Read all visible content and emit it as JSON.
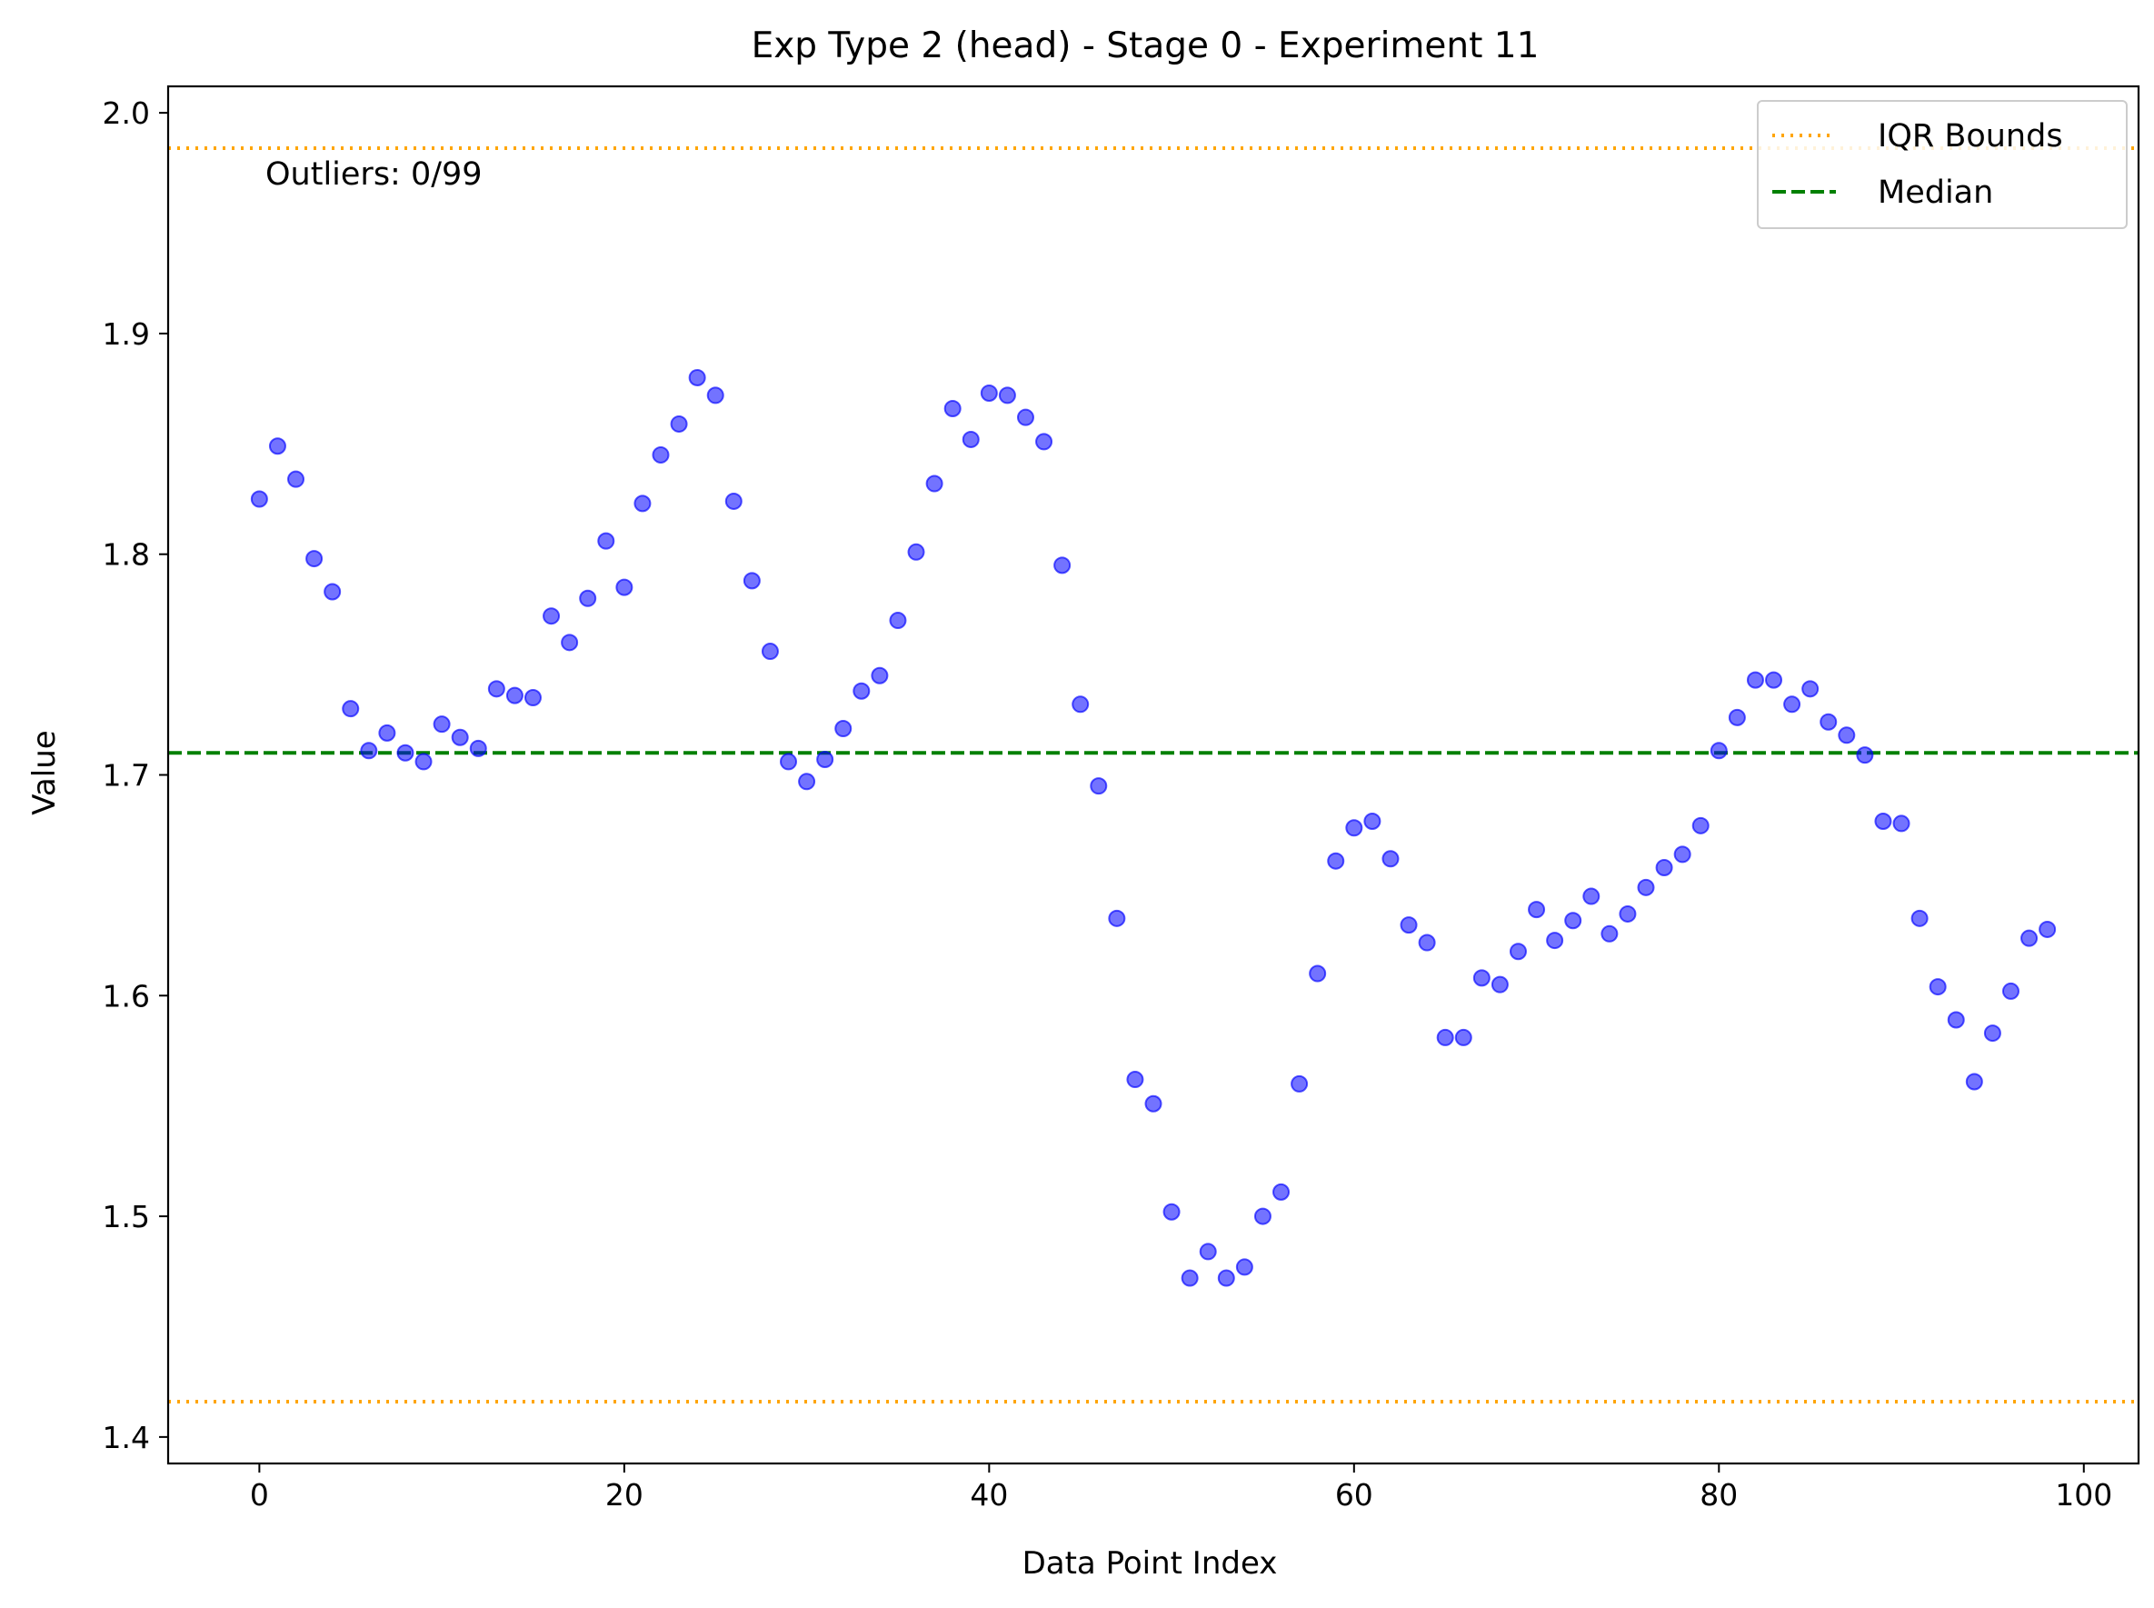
{
  "chart_data": {
    "type": "scatter",
    "title": "Exp Type 2 (head) - Stage 0 - Experiment 11",
    "xlabel": "Data Point Index",
    "ylabel": "Value",
    "xlim": [
      -5,
      103
    ],
    "ylim": [
      1.388,
      2.012
    ],
    "x_ticks": [
      0,
      20,
      40,
      60,
      80,
      100
    ],
    "x_tick_labels": [
      "0",
      "20",
      "40",
      "60",
      "80",
      "100"
    ],
    "y_ticks": [
      1.4,
      1.5,
      1.6,
      1.7,
      1.8,
      1.9,
      2.0
    ],
    "y_tick_labels": [
      "1.4",
      "1.5",
      "1.6",
      "1.7",
      "1.8",
      "1.9",
      "2.0"
    ],
    "grid": false,
    "legend_position": "top-right",
    "annotation": "Outliers: 0/99",
    "colors": {
      "points": "#0000ff",
      "iqr": "#ffa500",
      "median": "#008000"
    },
    "reference_lines": [
      {
        "name": "IQR Bounds",
        "value": 1.984,
        "style": "dotted",
        "color": "#ffa500"
      },
      {
        "name": "IQR Bounds",
        "value": 1.416,
        "style": "dotted",
        "color": "#ffa500"
      },
      {
        "name": "Median",
        "value": 1.71,
        "style": "dashed",
        "color": "#008000"
      }
    ],
    "legend": [
      {
        "label": "IQR Bounds",
        "style": "dotted",
        "color": "#ffa500"
      },
      {
        "label": "Median",
        "style": "dashed",
        "color": "#008000"
      }
    ],
    "x": [
      0,
      1,
      2,
      3,
      4,
      5,
      6,
      7,
      8,
      9,
      10,
      11,
      12,
      13,
      14,
      15,
      16,
      17,
      18,
      19,
      20,
      21,
      22,
      23,
      24,
      25,
      26,
      27,
      28,
      29,
      30,
      31,
      32,
      33,
      34,
      35,
      36,
      37,
      38,
      39,
      40,
      41,
      42,
      43,
      44,
      45,
      46,
      47,
      48,
      49,
      50,
      51,
      52,
      53,
      54,
      55,
      56,
      57,
      58,
      59,
      60,
      61,
      62,
      63,
      64,
      65,
      66,
      67,
      68,
      69,
      70,
      71,
      72,
      73,
      74,
      75,
      76,
      77,
      78,
      79,
      80,
      81,
      82,
      83,
      84,
      85,
      86,
      87,
      88,
      89,
      90,
      91,
      92,
      93,
      94,
      95,
      96,
      97,
      98
    ],
    "y": [
      1.825,
      1.849,
      1.834,
      1.798,
      1.783,
      1.73,
      1.711,
      1.719,
      1.71,
      1.706,
      1.723,
      1.717,
      1.712,
      1.739,
      1.736,
      1.735,
      1.772,
      1.76,
      1.78,
      1.806,
      1.785,
      1.823,
      1.845,
      1.859,
      1.88,
      1.872,
      1.824,
      1.788,
      1.756,
      1.706,
      1.697,
      1.707,
      1.721,
      1.738,
      1.745,
      1.77,
      1.801,
      1.832,
      1.866,
      1.852,
      1.873,
      1.872,
      1.862,
      1.851,
      1.795,
      1.732,
      1.695,
      1.635,
      1.562,
      1.551,
      1.502,
      1.472,
      1.484,
      1.472,
      1.477,
      1.5,
      1.511,
      1.56,
      1.61,
      1.661,
      1.676,
      1.679,
      1.662,
      1.632,
      1.624,
      1.581,
      1.581,
      1.608,
      1.605,
      1.62,
      1.639,
      1.625,
      1.634,
      1.645,
      1.628,
      1.637,
      1.649,
      1.658,
      1.664,
      1.677,
      1.711,
      1.726,
      1.743,
      1.743,
      1.732,
      1.739,
      1.724,
      1.718,
      1.709,
      1.679,
      1.678,
      1.635,
      1.604,
      1.589,
      1.561,
      1.583,
      1.602,
      1.626,
      1.63
    ]
  }
}
